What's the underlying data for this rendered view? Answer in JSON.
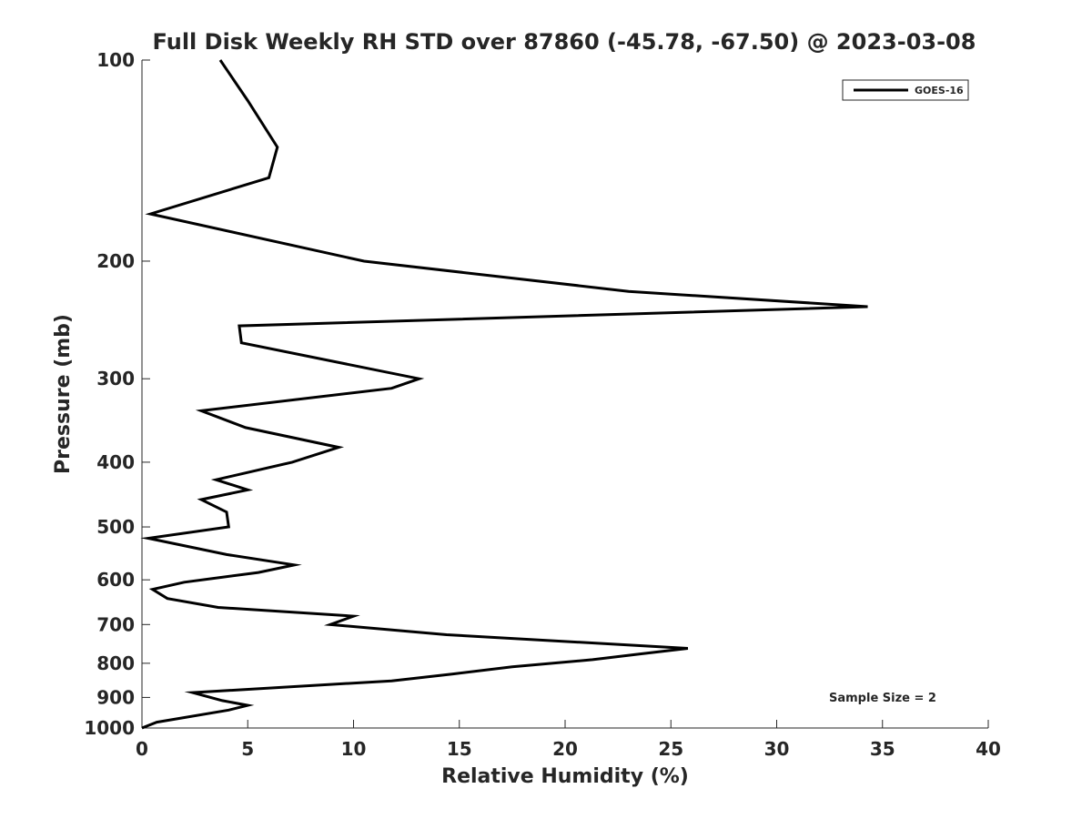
{
  "chart_data": {
    "type": "line",
    "title": "Full Disk Weekly RH STD over 87860 (-45.78, -67.50) @ 2023-03-08",
    "xlabel": "Relative Humidity (%)",
    "ylabel": "Pressure (mb)",
    "xlim": [
      0,
      40
    ],
    "ylim": [
      100,
      1000
    ],
    "yscale": "log",
    "y_reversed": true,
    "xticks": [
      0,
      5,
      10,
      15,
      20,
      25,
      30,
      35,
      40
    ],
    "yticks": [
      100,
      200,
      300,
      400,
      500,
      600,
      700,
      800,
      900,
      1000
    ],
    "grid": false,
    "legend_position": "top-right",
    "annotation": "Sample Size = 2",
    "series": [
      {
        "name": "GOES-16",
        "color": "#000000",
        "points": [
          [
            3.7,
            100
          ],
          [
            5.0,
            115
          ],
          [
            6.4,
            135
          ],
          [
            6.0,
            150
          ],
          [
            0.4,
            170
          ],
          [
            10.5,
            200
          ],
          [
            23.0,
            222
          ],
          [
            34.3,
            234
          ],
          [
            4.6,
            250
          ],
          [
            4.7,
            265
          ],
          [
            13.1,
            300
          ],
          [
            11.8,
            310
          ],
          [
            2.8,
            335
          ],
          [
            4.9,
            355
          ],
          [
            9.3,
            380
          ],
          [
            7.1,
            400
          ],
          [
            3.5,
            425
          ],
          [
            5.0,
            440
          ],
          [
            2.8,
            455
          ],
          [
            4.0,
            475
          ],
          [
            4.1,
            500
          ],
          [
            0.3,
            520
          ],
          [
            4.0,
            550
          ],
          [
            7.2,
            570
          ],
          [
            5.5,
            585
          ],
          [
            2.0,
            605
          ],
          [
            0.5,
            620
          ],
          [
            1.2,
            640
          ],
          [
            3.6,
            660
          ],
          [
            10.0,
            680
          ],
          [
            8.9,
            700
          ],
          [
            14.4,
            725
          ],
          [
            25.8,
            760
          ],
          [
            23.5,
            775
          ],
          [
            21.3,
            790
          ],
          [
            17.5,
            810
          ],
          [
            14.7,
            830
          ],
          [
            11.8,
            850
          ],
          [
            2.4,
            885
          ],
          [
            3.8,
            910
          ],
          [
            5.0,
            925
          ],
          [
            4.1,
            940
          ],
          [
            0.7,
            980
          ],
          [
            0.0,
            1000
          ]
        ]
      }
    ]
  }
}
